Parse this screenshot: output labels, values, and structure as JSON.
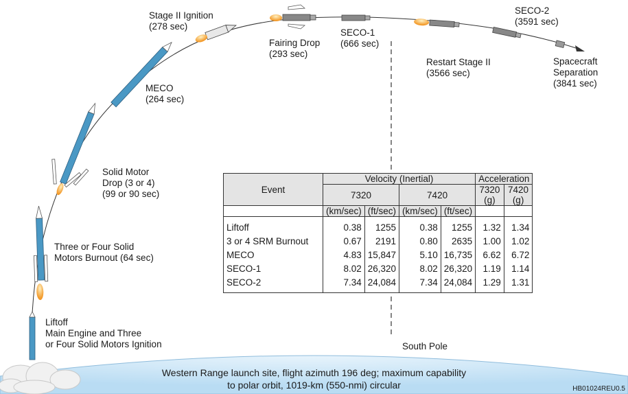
{
  "events": {
    "liftoff": [
      "Liftoff",
      "Main Engine and Three",
      "or Four Solid Motors Ignition"
    ],
    "burnout": [
      "Three or Four Solid",
      "Motors Burnout (64 sec)"
    ],
    "solid_drop": [
      "Solid Motor",
      "Drop (3 or 4)",
      "(99 or 90 sec)"
    ],
    "meco": [
      "MECO",
      "(264 sec)"
    ],
    "stage2": [
      "Stage II Ignition",
      "(278 sec)"
    ],
    "fairing": [
      "Fairing Drop",
      "(293 sec)"
    ],
    "seco1": [
      "SECO-1",
      "(666 sec)"
    ],
    "restart": [
      "Restart Stage II",
      "(3566 sec)"
    ],
    "seco2": [
      "SECO-2",
      "(3591 sec)"
    ],
    "separation": [
      "Spacecraft",
      "Separation",
      "(3841 sec)"
    ]
  },
  "south_pole": "South Pole",
  "ground_text": [
    "Western Range launch site, flight azimuth 196 deg; maximum capability",
    "to polar orbit, 1019-km (550-nmi) circular"
  ],
  "figure_id": "HB01024REU0.5",
  "table": {
    "event_header": "Event",
    "velocity_header": "Velocity (Inertial)",
    "accel_header": "Acceleration",
    "model_a": "7320",
    "model_b": "7420",
    "unit_kms": "(km/sec)",
    "unit_fts": "(ft/sec)",
    "unit_g": "(g)",
    "rows": [
      {
        "event": "Liftoff",
        "v7320_kms": "0.38",
        "v7320_fts": "1255",
        "v7420_kms": "0.38",
        "v7420_fts": "1255",
        "a7320": "1.32",
        "a7420": "1.34"
      },
      {
        "event": "3 or 4 SRM Burnout",
        "v7320_kms": "0.67",
        "v7320_fts": "2191",
        "v7420_kms": "0.80",
        "v7420_fts": "2635",
        "a7320": "1.00",
        "a7420": "1.02"
      },
      {
        "event": "MECO",
        "v7320_kms": "4.83",
        "v7320_fts": "15,847",
        "v7420_kms": "5.10",
        "v7420_fts": "16,735",
        "a7320": "6.62",
        "a7420": "6.72"
      },
      {
        "event": "SECO-1",
        "v7320_kms": "8.02",
        "v7320_fts": "26,320",
        "v7420_kms": "8.02",
        "v7420_fts": "26,320",
        "a7320": "1.19",
        "a7420": "1.14"
      },
      {
        "event": "SECO-2",
        "v7320_kms": "7.34",
        "v7320_fts": "24,084",
        "v7420_kms": "7.34",
        "v7420_fts": "24,084",
        "a7320": "1.29",
        "a7420": "1.31"
      }
    ]
  },
  "colors": {
    "rocket": "#4a98c4",
    "flame": "#f5a233",
    "earth": "#cfe6f7",
    "header_fill": "#e4e4e4"
  }
}
